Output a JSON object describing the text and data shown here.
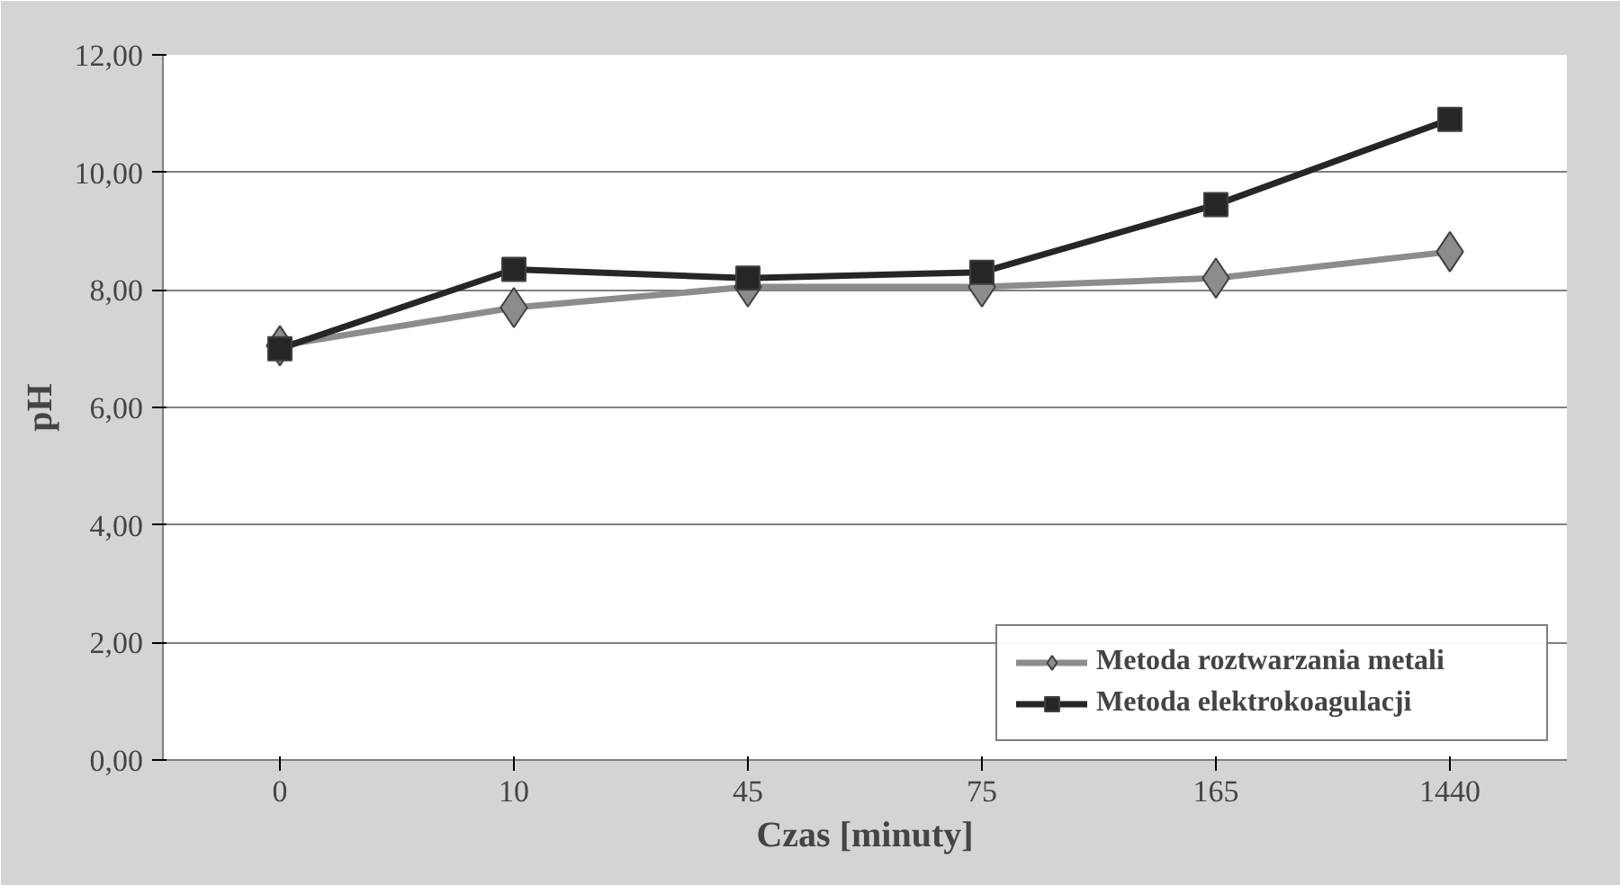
{
  "chart_data": {
    "type": "line",
    "xlabel": "Czas [minuty]",
    "ylabel": "pH",
    "categories": [
      "0",
      "10",
      "45",
      "75",
      "165",
      "1440"
    ],
    "series": [
      {
        "name": "Metoda roztwarzania metali",
        "color": "#8c8c8c",
        "marker": "diamond",
        "values": [
          7.05,
          7.7,
          8.05,
          8.05,
          8.2,
          8.65
        ]
      },
      {
        "name": "Metoda elektrokoagulacji",
        "color": "#262626",
        "marker": "square",
        "values": [
          7.0,
          8.35,
          8.2,
          8.3,
          9.45,
          10.9
        ]
      }
    ],
    "ylim": [
      0,
      12
    ],
    "yticks": [
      {
        "value": 0,
        "label": "0,00"
      },
      {
        "value": 2,
        "label": "2,00"
      },
      {
        "value": 4,
        "label": "4,00"
      },
      {
        "value": 6,
        "label": "6,00"
      },
      {
        "value": 8,
        "label": "8,00"
      },
      {
        "value": 10,
        "label": "10,00"
      },
      {
        "value": 12,
        "label": "12,00"
      }
    ],
    "grid": "y",
    "legend": "bottom right",
    "line_style": "solid"
  }
}
